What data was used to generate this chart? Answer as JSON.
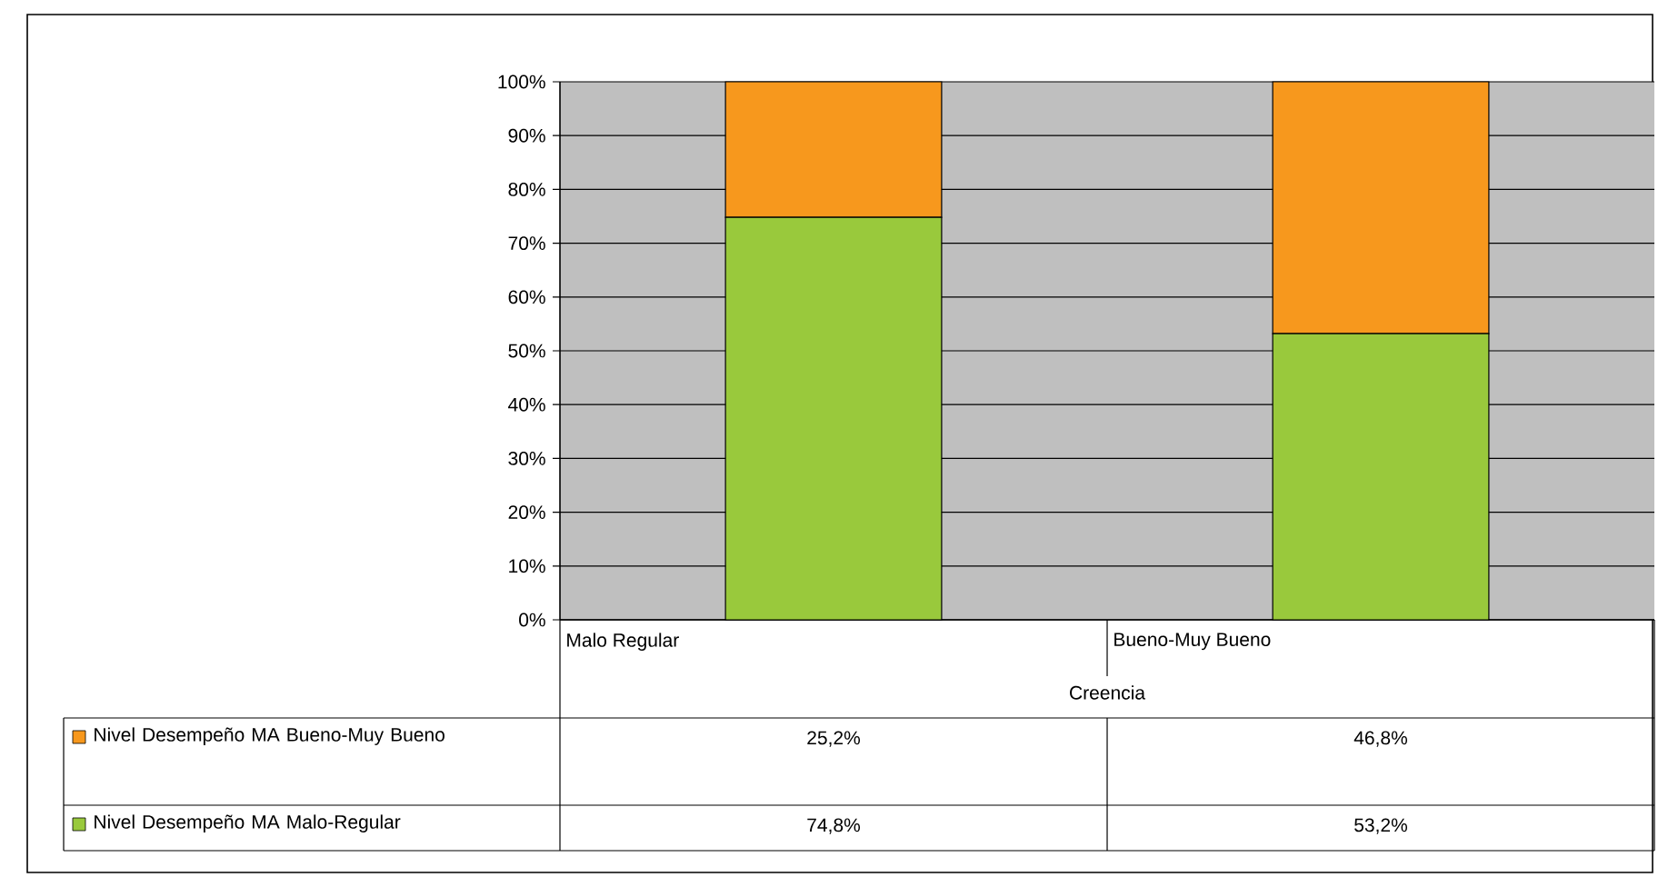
{
  "chart_data": {
    "type": "bar",
    "stacked": true,
    "xlabel": "Creencia",
    "categories": [
      "Malo Regular",
      "Bueno-Muy Bueno"
    ],
    "series": [
      {
        "name": "Nivel Desempeño MA Malo-Regular",
        "color": "#99c93c",
        "values": [
          74.8,
          53.2
        ],
        "value_labels": [
          "74,8%",
          "53,2%"
        ]
      },
      {
        "name": "Nivel Desempeño MA Bueno-Muy Bueno",
        "color": "#f7981d",
        "values": [
          25.2,
          46.8
        ],
        "value_labels": [
          "25,2%",
          "46,8%"
        ]
      }
    ],
    "ylim": [
      0,
      100
    ],
    "yticks": [
      {
        "value": 0,
        "label": "0%"
      },
      {
        "value": 10,
        "label": "10%"
      },
      {
        "value": 20,
        "label": "20%"
      },
      {
        "value": 30,
        "label": "30%"
      },
      {
        "value": 40,
        "label": "40%"
      },
      {
        "value": 50,
        "label": "50%"
      },
      {
        "value": 60,
        "label": "60%"
      },
      {
        "value": 70,
        "label": "70%"
      },
      {
        "value": 80,
        "label": "80%"
      },
      {
        "value": 90,
        "label": "90%"
      },
      {
        "value": 100,
        "label": "100%"
      }
    ],
    "grid": "y",
    "legend": "bottom"
  }
}
